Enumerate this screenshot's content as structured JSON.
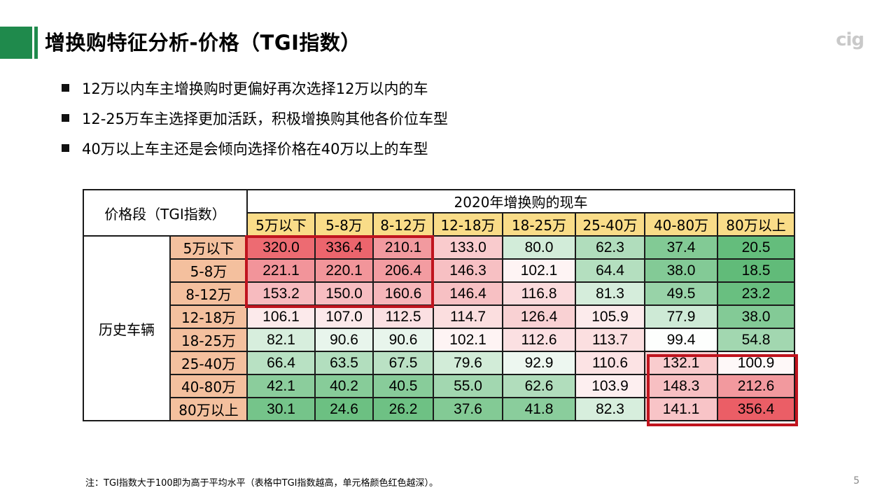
{
  "title": "增换购特征分析-价格（TGI指数）",
  "logo_text": "cig",
  "bullets": [
    "12万以内车主增换购时更偏好再次选择12万以内的车",
    "12-25万车主选择更加活跃，积极增换购其他各价位车型",
    "40万以上车主还是会倾向选择价格在40万以上的车型"
  ],
  "table": {
    "corner_label": "价格段（TGI指数）",
    "col_group": "2020年增换购的现车",
    "row_group": "历史车辆",
    "columns": [
      "5万以下",
      "5-8万",
      "8-12万",
      "12-18万",
      "18-25万",
      "25-40万",
      "40-80万",
      "80万以上"
    ],
    "rows": [
      {
        "label": "5万以下",
        "values": [
          "320.0",
          "336.4",
          "210.1",
          "133.0",
          "80.0",
          "62.3",
          "37.4",
          "20.5"
        ]
      },
      {
        "label": "5-8万",
        "values": [
          "221.1",
          "220.1",
          "206.4",
          "146.3",
          "102.1",
          "64.4",
          "38.0",
          "18.5"
        ]
      },
      {
        "label": "8-12万",
        "values": [
          "153.2",
          "150.0",
          "160.6",
          "146.4",
          "116.8",
          "81.3",
          "49.5",
          "23.2"
        ]
      },
      {
        "label": "12-18万",
        "values": [
          "106.1",
          "107.0",
          "112.5",
          "114.7",
          "126.4",
          "105.9",
          "77.9",
          "38.0"
        ]
      },
      {
        "label": "18-25万",
        "values": [
          "82.1",
          "90.6",
          "90.6",
          "102.1",
          "112.6",
          "113.7",
          "99.4",
          "54.8"
        ]
      },
      {
        "label": "25-40万",
        "values": [
          "66.4",
          "63.5",
          "67.5",
          "79.6",
          "92.9",
          "110.6",
          "132.1",
          "100.9"
        ]
      },
      {
        "label": "40-80万",
        "values": [
          "42.1",
          "40.2",
          "40.5",
          "55.0",
          "62.6",
          "103.9",
          "148.3",
          "212.6"
        ]
      },
      {
        "label": "80万以上",
        "values": [
          "30.1",
          "24.6",
          "26.2",
          "37.6",
          "41.8",
          "82.3",
          "141.1",
          "356.4"
        ]
      }
    ]
  },
  "note": "注：TGI指数大于100即为高于平均水平（表格中TGI指数越高，单元格颜色红色越深）。",
  "page_number": "5",
  "colors": {
    "accent_green": "#1f8a4c",
    "column_header": "#f9dc88",
    "row_header": "#f4c09e",
    "highlight_border": "#c0141e"
  }
}
